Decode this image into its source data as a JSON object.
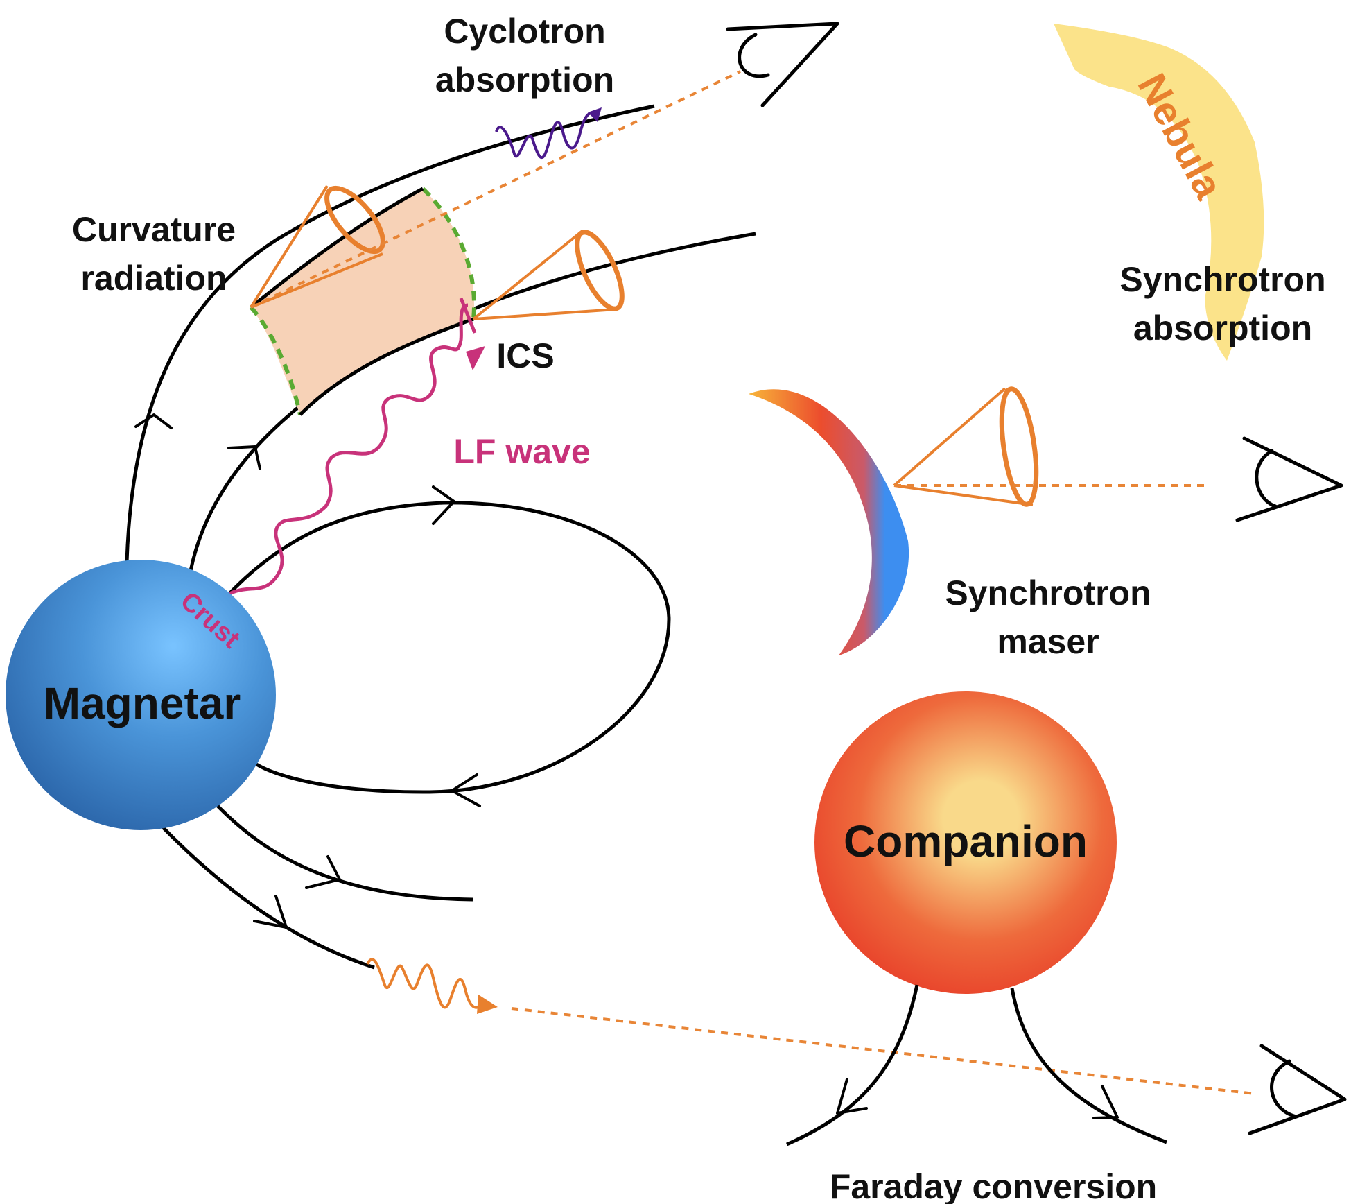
{
  "labels": {
    "cyclotron": [
      "Cyclotron",
      "absorption"
    ],
    "curvature": [
      "Curvature",
      "radiation"
    ],
    "ics": "ICS",
    "lf_wave": "LF wave",
    "nebula": "Nebula",
    "synchrotron_absorption": [
      "Synchrotron",
      "absorption"
    ],
    "synchrotron_maser": [
      "Synchrotron",
      "maser"
    ],
    "crust": "Crust",
    "magnetar": "Magnetar",
    "companion": "Companion",
    "faraday": "Faraday conversion"
  },
  "colors": {
    "magnetar_blue": "#2f6fb6",
    "highlight_blue": "#79c3ff",
    "companion_red": "#e8412a",
    "companion_core": "#f9d98a",
    "emission_orange": "#e8802e",
    "region_fill": "#f7d2b7",
    "region_boundary": "#5aaa32",
    "lf_wave_magenta": "#c8327a",
    "cyclotron_purple": "#4b1a8c",
    "nebula_yellow": "#fbe38a",
    "nebula_text": "#e8802e",
    "maser_blue": "#3d8ef0"
  }
}
